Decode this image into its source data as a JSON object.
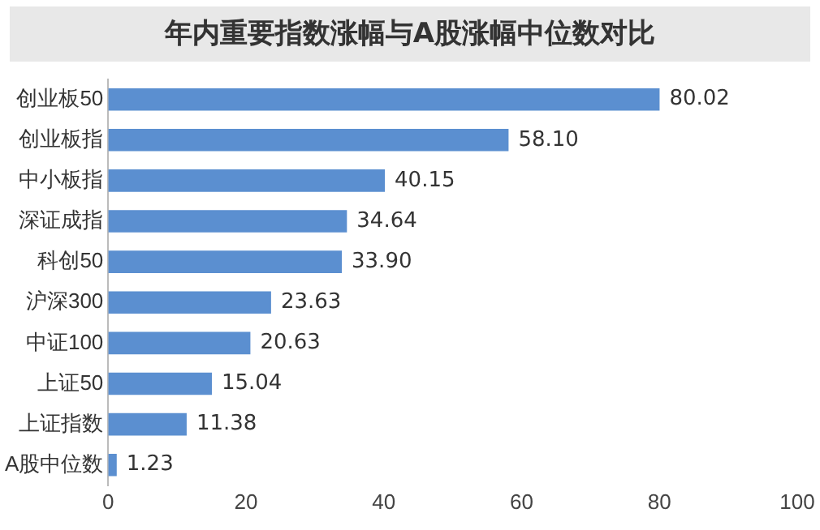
{
  "chart_data": {
    "type": "bar",
    "orientation": "horizontal",
    "title": "年内重要指数涨幅与A股涨幅中位数对比",
    "categories": [
      "创业板50",
      "创业板指",
      "中小板指",
      "深证成指",
      "科创50",
      "沪深300",
      "中证100",
      "上证50",
      "上证指数",
      "A股中位数"
    ],
    "values": [
      80.02,
      58.1,
      40.15,
      34.64,
      33.9,
      23.63,
      20.63,
      15.04,
      11.38,
      1.23
    ],
    "value_labels": [
      "80.02",
      "58.10",
      "40.15",
      "34.64",
      "33.90",
      "23.63",
      "20.63",
      "15.04",
      "11.38",
      "1.23"
    ],
    "color": "#5b8fd0",
    "xlim": [
      0,
      100
    ],
    "xticks": [
      0,
      20,
      40,
      60,
      80,
      100
    ],
    "grid": false,
    "legend": false
  }
}
